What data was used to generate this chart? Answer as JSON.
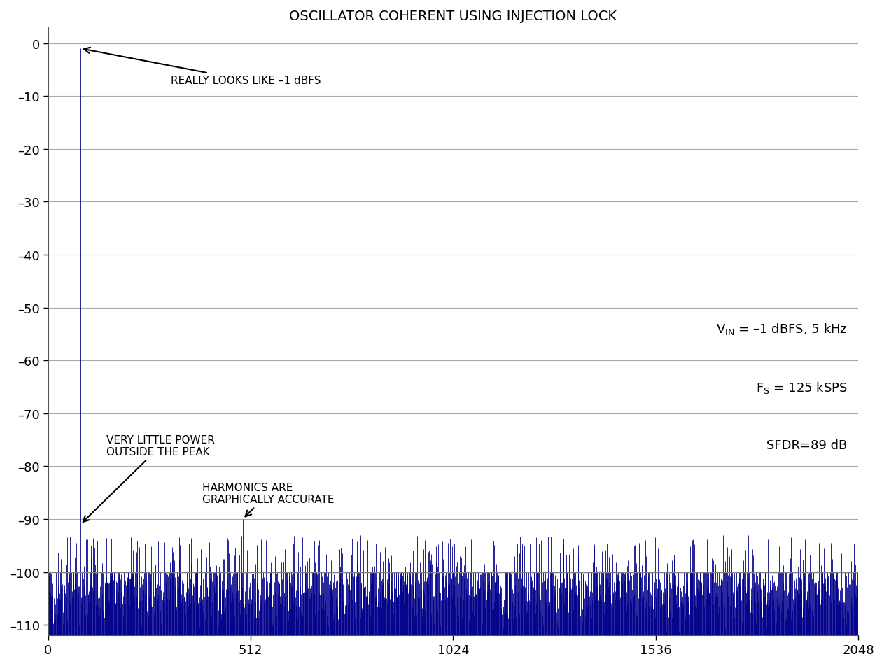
{
  "title": "OSCILLATOR COHERENT USING INJECTION LOCK",
  "xlim": [
    0,
    2048
  ],
  "ylim": [
    -112,
    3
  ],
  "yticks": [
    0,
    -10,
    -20,
    -30,
    -40,
    -50,
    -60,
    -70,
    -80,
    -90,
    -100,
    -110
  ],
  "ytick_labels": [
    "0",
    "–10",
    "–20",
    "–30",
    "–40",
    "–50",
    "–60",
    "–70",
    "–80",
    "–90",
    "–100",
    "–110"
  ],
  "xticks": [
    0,
    512,
    1024,
    1536,
    2048
  ],
  "signal_bin": 82,
  "signal_level": -1.0,
  "harmonic2_bin": 492,
  "harmonic2_level": -90,
  "noise_floor_mean": -103,
  "noise_floor_line": -100,
  "line_color": "#00008B",
  "background_color": "#ffffff",
  "grid_color": "#aaaaaa",
  "annotation_fontsize": 11,
  "title_fontsize": 14,
  "tick_fontsize": 13,
  "label1": "REALLY LOOKS LIKE –1 dBFS",
  "label2": "VERY LITTLE POWER\nOUTSIDE THE PEAK",
  "label3": "HARMONICS ARE\nGRAPHICALLY ACCURATE",
  "vin_val": " = –1 dBFS, 5 kHz",
  "fs_val": " = 125 kSPS",
  "sfdr_text": "SFDR=89 dB",
  "N": 2048,
  "seed": 42
}
